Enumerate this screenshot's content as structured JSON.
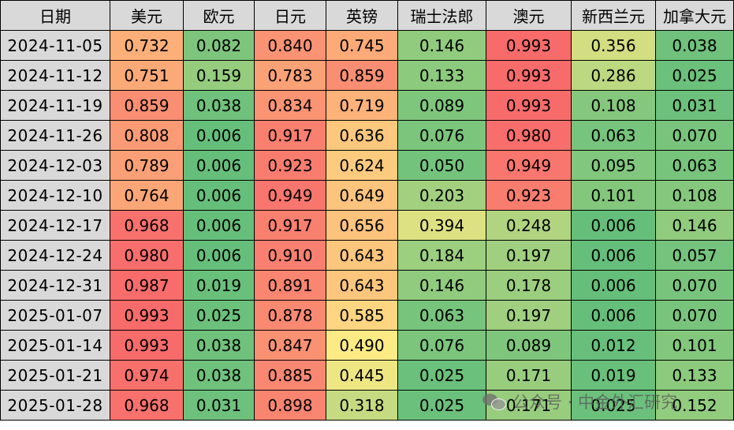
{
  "headers": [
    "日期",
    "美元",
    "欧元",
    "日元",
    "英镑",
    "瑞士法郎",
    "澳元",
    "新西兰元",
    "加拿大元"
  ],
  "rows": [
    {
      "date": "2024-11-05",
      "values": [
        "0.732",
        "0.082",
        "0.840",
        "0.745",
        "0.146",
        "0.993",
        "0.356",
        "0.038"
      ]
    },
    {
      "date": "2024-11-12",
      "values": [
        "0.751",
        "0.159",
        "0.783",
        "0.859",
        "0.133",
        "0.993",
        "0.286",
        "0.025"
      ]
    },
    {
      "date": "2024-11-19",
      "values": [
        "0.859",
        "0.038",
        "0.834",
        "0.719",
        "0.089",
        "0.993",
        "0.108",
        "0.031"
      ]
    },
    {
      "date": "2024-11-26",
      "values": [
        "0.808",
        "0.006",
        "0.917",
        "0.636",
        "0.076",
        "0.980",
        "0.063",
        "0.070"
      ]
    },
    {
      "date": "2024-12-03",
      "values": [
        "0.789",
        "0.006",
        "0.923",
        "0.624",
        "0.050",
        "0.949",
        "0.095",
        "0.063"
      ]
    },
    {
      "date": "2024-12-10",
      "values": [
        "0.764",
        "0.006",
        "0.949",
        "0.649",
        "0.203",
        "0.923",
        "0.101",
        "0.108"
      ]
    },
    {
      "date": "2024-12-17",
      "values": [
        "0.968",
        "0.006",
        "0.917",
        "0.656",
        "0.394",
        "0.248",
        "0.006",
        "0.146"
      ]
    },
    {
      "date": "2024-12-24",
      "values": [
        "0.980",
        "0.006",
        "0.910",
        "0.643",
        "0.184",
        "0.197",
        "0.006",
        "0.057"
      ]
    },
    {
      "date": "2024-12-31",
      "values": [
        "0.987",
        "0.019",
        "0.891",
        "0.643",
        "0.146",
        "0.178",
        "0.006",
        "0.070"
      ]
    },
    {
      "date": "2025-01-07",
      "values": [
        "0.993",
        "0.025",
        "0.878",
        "0.585",
        "0.063",
        "0.197",
        "0.006",
        "0.070"
      ]
    },
    {
      "date": "2025-01-14",
      "values": [
        "0.993",
        "0.038",
        "0.847",
        "0.490",
        "0.076",
        "0.089",
        "0.012",
        "0.101"
      ]
    },
    {
      "date": "2025-01-21",
      "values": [
        "0.974",
        "0.038",
        "0.885",
        "0.445",
        "0.025",
        "0.171",
        "0.019",
        "0.133"
      ]
    },
    {
      "date": "2025-01-28",
      "values": [
        "0.968",
        "0.031",
        "0.898",
        "0.318",
        "0.025",
        "0.171",
        "0.025",
        "0.152"
      ]
    }
  ],
  "color_scale": {
    "low": "#63be7b",
    "mid": "#ffeb84",
    "high": "#f8696b"
  },
  "watermark": {
    "icon": "wechat-icon",
    "text": "公众号 · 中金外汇研究"
  }
}
